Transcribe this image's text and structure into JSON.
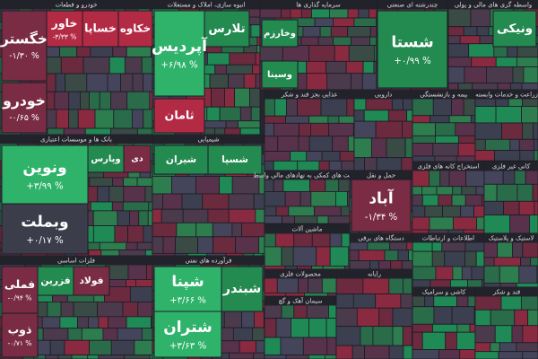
{
  "chart_data": {
    "type": "treemap",
    "groups": [
      {
        "name": "خودرو و قطعات",
        "tiles": [
          {
            "name": "خگستر",
            "value": -1.3,
            "value_label": "-۱/۳۰ %"
          },
          {
            "name": "خودرو",
            "value": -0.65,
            "value_label": "-۰/۶۵ %"
          },
          {
            "name": "خاور",
            "value": -3.33,
            "value_label": "-۳/۳۳ %"
          },
          {
            "name": "خساپا",
            "value": -2
          },
          {
            "name": "خکاوه",
            "value": -2.5
          }
        ]
      },
      {
        "name": "انبوه سازی، املاک و مستغلات",
        "tiles": [
          {
            "name": "تلارس",
            "value": 1.5
          },
          {
            "name": "آپردیس",
            "value": 6.98,
            "value_label": "+۶/۹۸ %"
          },
          {
            "name": "ثامان",
            "value": -3
          }
        ]
      },
      {
        "name": "سرمایه گذاری ها",
        "tiles": [
          {
            "name": "وخارزم",
            "value": 1
          },
          {
            "name": "وسینا",
            "value": 1.2
          }
        ]
      },
      {
        "name": "چندرشته ای صنعتی",
        "tiles": [
          {
            "name": "شستا",
            "value": 0.99,
            "value_label": "+۰/۹۹ %"
          }
        ]
      },
      {
        "name": "واسطه گری های مالی و پولی",
        "tiles": [
          {
            "name": "ونیکی",
            "value": 1.5
          }
        ]
      },
      {
        "name": "بانک ها و موسسات اعتباری",
        "tiles": [
          {
            "name": "ونوین",
            "value": 3.99,
            "value_label": "+۳/۹۹ %"
          },
          {
            "name": "وبملت",
            "value": 0.17,
            "value_label": "+۰/۱۷ %"
          },
          {
            "name": "وپارس",
            "value": 2.2
          },
          {
            "name": "دی",
            "value": -1.5
          }
        ]
      },
      {
        "name": "شیمیایی",
        "tiles": [
          {
            "name": "شیران",
            "value": 1.5
          },
          {
            "name": "شسپا",
            "value": 2
          }
        ]
      },
      {
        "name": "غذایی بجز قند و شکر",
        "tiles": []
      },
      {
        "name": "دارویی",
        "tiles": []
      },
      {
        "name": "بیمه و بازنشستگی",
        "tiles": []
      },
      {
        "name": "زراعت و خدمات وابسته",
        "tiles": []
      },
      {
        "name": "فعالیت های کمکی به نهادهای مالی واسط",
        "tiles": []
      },
      {
        "name": "حمل و نقل",
        "tiles": [
          {
            "name": "آباد",
            "value": -1.34,
            "value_label": "-۱/۳۴ %"
          }
        ]
      },
      {
        "name": "استخراج کانه های فلزی",
        "tiles": []
      },
      {
        "name": "کانی غیر فلزی",
        "tiles": []
      },
      {
        "name": "ماشین آلات",
        "tiles": []
      },
      {
        "name": "اطلاعات و ارتباطات",
        "tiles": []
      },
      {
        "name": "لاستیک و پلاستیک",
        "tiles": []
      },
      {
        "name": "فلزات اساسی",
        "tiles": [
          {
            "name": "فملی",
            "value": -0.94,
            "value_label": "-۰/۹۴ %"
          },
          {
            "name": "ذوب",
            "value": -0.71,
            "value_label": "-۰/۷۱ %"
          },
          {
            "name": "فزرین",
            "value": 2
          },
          {
            "name": "فولاد",
            "value": -1
          }
        ]
      },
      {
        "name": "فرآورده های نفتی",
        "tiles": [
          {
            "name": "شپنا",
            "value": 3.66,
            "value_label": "+۳/۶۶ %"
          },
          {
            "name": "شتران",
            "value": 3.63,
            "value_label": "+۳/۶۳ %"
          },
          {
            "name": "شبندر",
            "value": 2.5
          }
        ]
      },
      {
        "name": "سیمان آهک و گچ",
        "tiles": []
      },
      {
        "name": "دستگاه های برقی",
        "tiles": []
      },
      {
        "name": "رایانه",
        "tiles": []
      },
      {
        "name": "محصولات فلزی",
        "tiles": []
      },
      {
        "name": "کاشی و سرامیک",
        "tiles": []
      },
      {
        "name": "قند و شکر",
        "tiles": []
      }
    ]
  }
}
